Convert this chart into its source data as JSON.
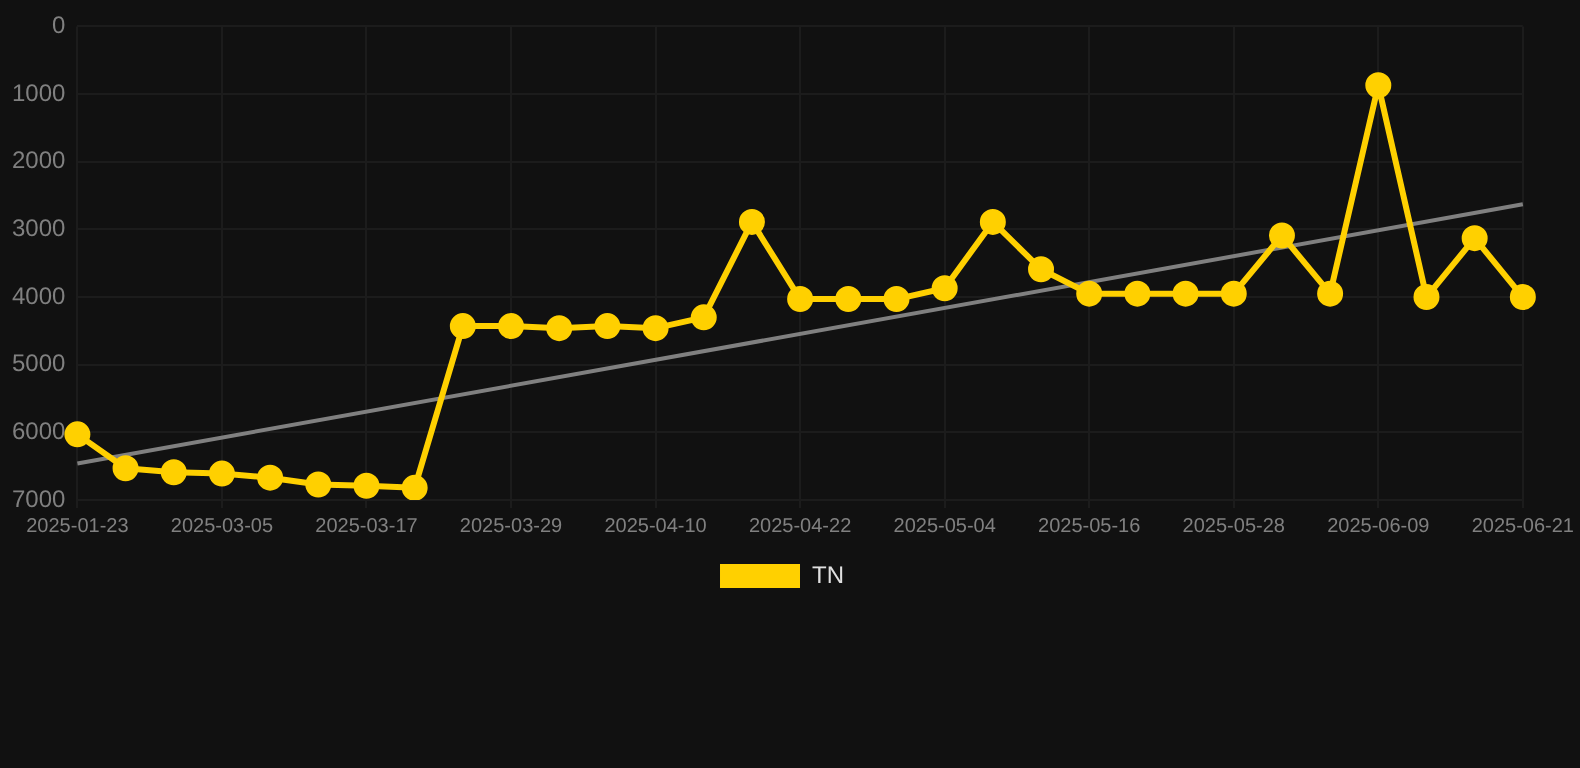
{
  "chart_data": {
    "type": "line",
    "categories": [
      "2025-01-23",
      null,
      null,
      "2025-03-05",
      null,
      null,
      "2025-03-17",
      null,
      null,
      "2025-03-29",
      null,
      null,
      "2025-04-10",
      null,
      null,
      "2025-04-22",
      null,
      null,
      "2025-05-04",
      null,
      null,
      "2025-05-16",
      null,
      null,
      "2025-05-28",
      null,
      null,
      "2025-06-09",
      null,
      null,
      "2025-06-21"
    ],
    "series": [
      {
        "name": "TN",
        "color": "#ffd000",
        "marker": "circle",
        "values": [
          6030,
          6530,
          6590,
          6610,
          6670,
          6770,
          6790,
          6820,
          4430,
          4430,
          4460,
          4430,
          4460,
          4300,
          2890,
          4030,
          4030,
          4030,
          3870,
          2890,
          3590,
          3950,
          3950,
          3950,
          3950,
          3090,
          3950,
          870,
          4000,
          3130,
          4000
        ]
      },
      {
        "type": "line",
        "color": "#808080",
        "marker": "none",
        "values": [
          6460,
          null,
          null,
          null,
          null,
          null,
          null,
          null,
          null,
          null,
          null,
          null,
          null,
          null,
          null,
          null,
          null,
          null,
          null,
          null,
          null,
          null,
          null,
          null,
          null,
          null,
          null,
          null,
          null,
          null,
          2630
        ]
      }
    ],
    "ylim": [
      7000,
      0
    ],
    "yticks": [
      0,
      1000,
      2000,
      3000,
      4000,
      5000,
      6000,
      7000
    ],
    "grid": true,
    "legend": "bottom"
  }
}
